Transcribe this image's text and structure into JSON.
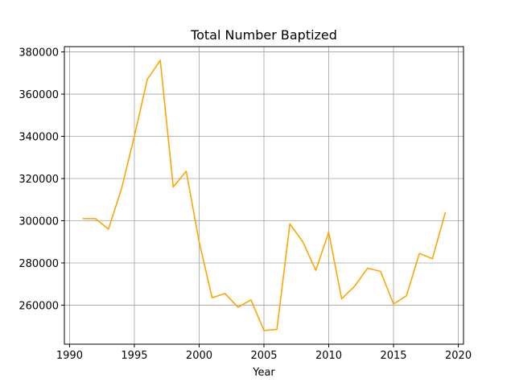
{
  "chart_data": {
    "type": "line",
    "title": "Total Number Baptized",
    "xlabel": "Year",
    "ylabel": "",
    "grid": true,
    "xlim": [
      1989.6,
      2020.4
    ],
    "ylim": [
      241500,
      382500
    ],
    "x_ticks": [
      1990,
      1995,
      2000,
      2005,
      2010,
      2015,
      2020
    ],
    "y_ticks": [
      260000,
      280000,
      300000,
      320000,
      340000,
      360000,
      380000
    ],
    "series": [
      {
        "color": "#ffa500",
        "x": [
          1991,
          1992,
          1993,
          1994,
          1995,
          1996,
          1997,
          1998,
          1999,
          2000,
          2001,
          2002,
          2003,
          2004,
          2005,
          2006,
          2007,
          2008,
          2009,
          2010,
          2011,
          2012,
          2013,
          2014,
          2015,
          2016,
          2017,
          2018,
          2019
        ],
        "y": [
          301000,
          301000,
          296000,
          315000,
          340000,
          367000,
          376000,
          316000,
          323500,
          290000,
          263500,
          265500,
          259000,
          262500,
          248000,
          248500,
          298500,
          290000,
          276500,
          294500,
          263000,
          269000,
          277500,
          276000,
          260500,
          264500,
          284500,
          282000,
          304000
        ]
      }
    ]
  }
}
